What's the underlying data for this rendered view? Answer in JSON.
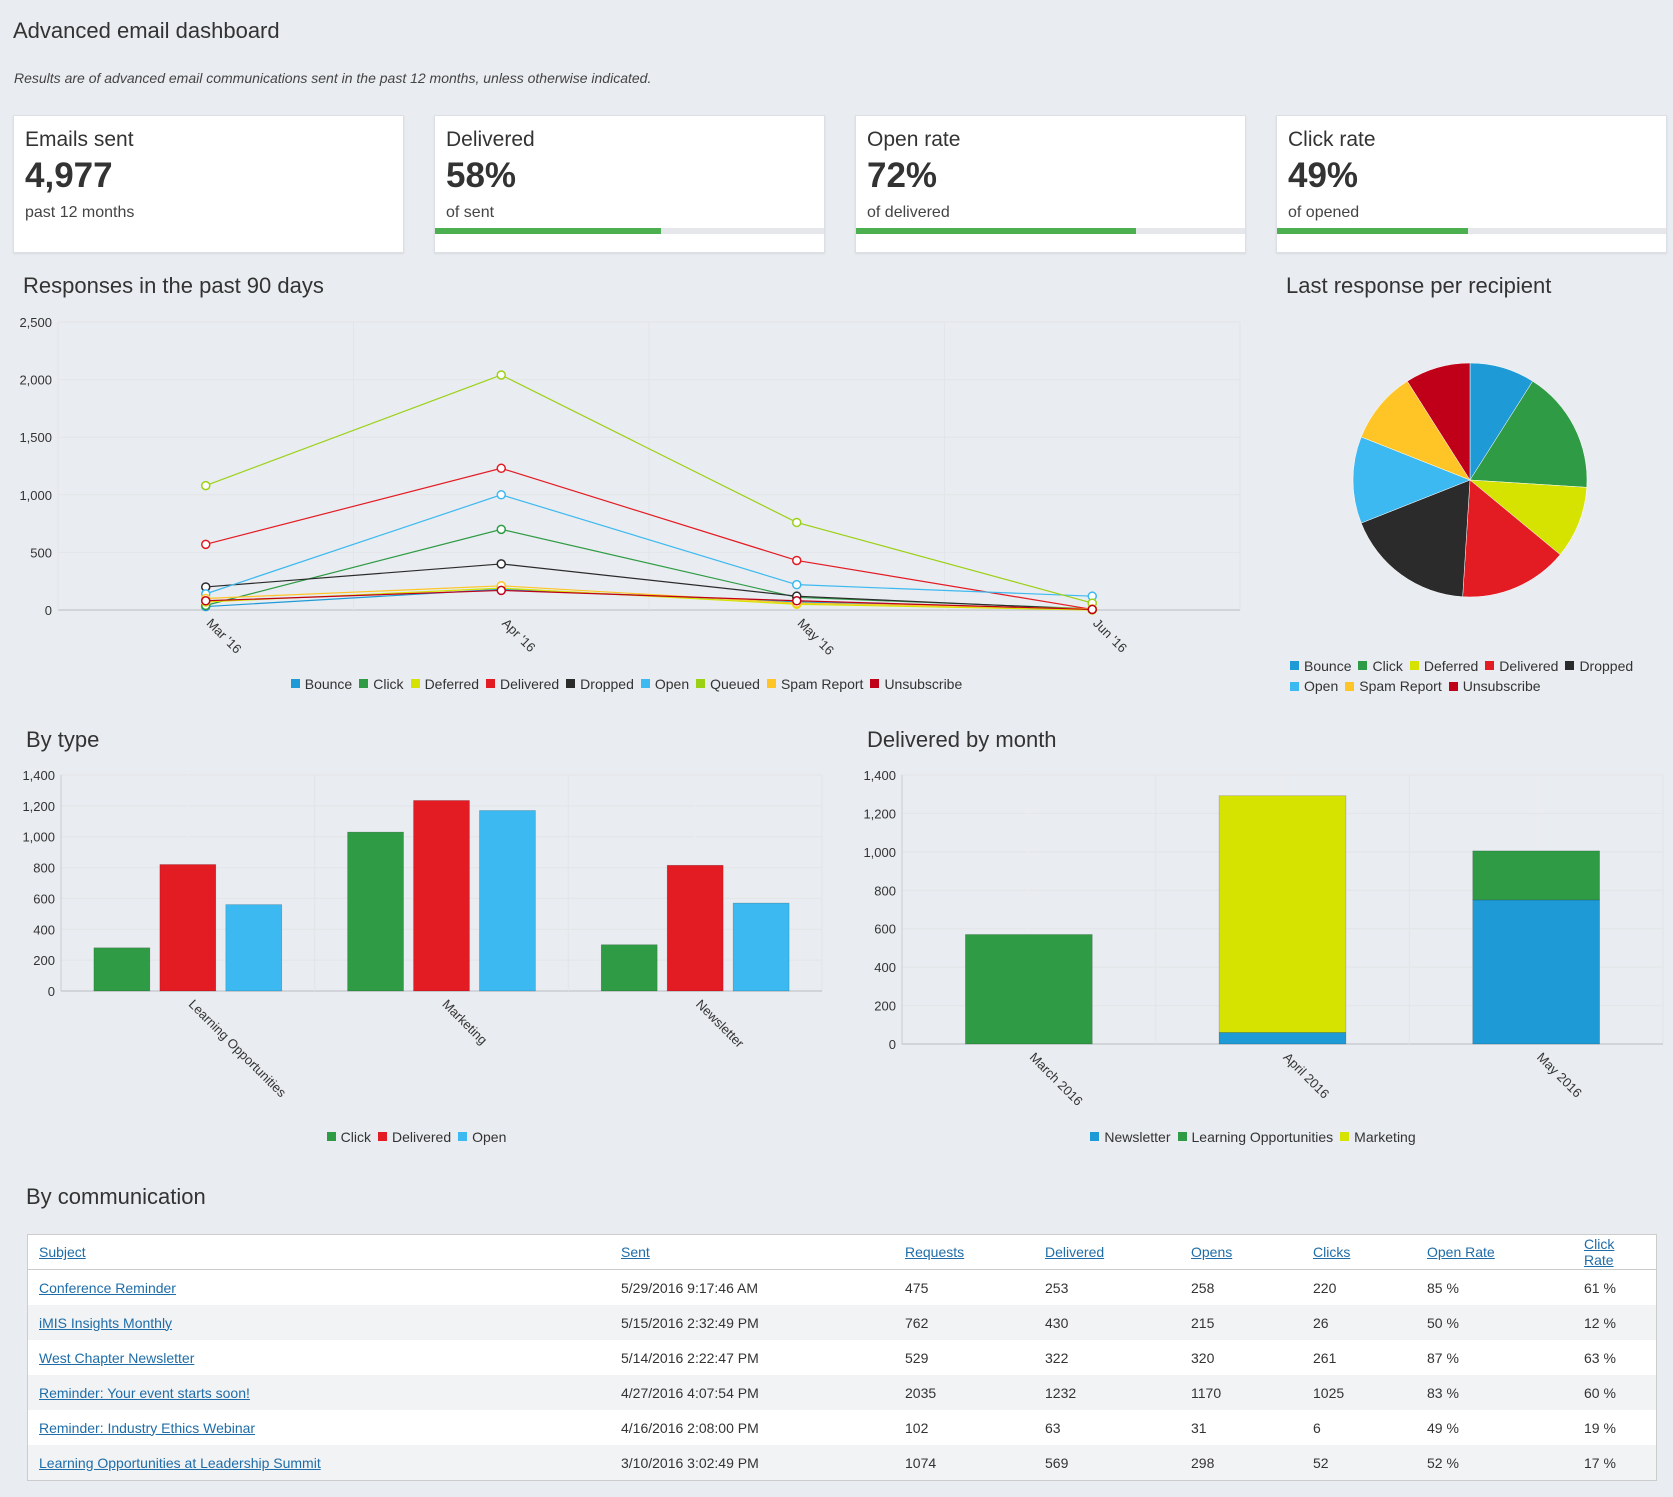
{
  "title": "Advanced email dashboard",
  "subtitle": "Results are of advanced email communications sent in the past 12 months, unless otherwise indicated.",
  "kpis": [
    {
      "label": "Emails sent",
      "value": "4,977",
      "sub": "past 12 months",
      "progress": null
    },
    {
      "label": "Delivered",
      "value": "58%",
      "sub": "of sent",
      "progress": 0.58
    },
    {
      "label": "Open rate",
      "value": "72%",
      "sub": "of delivered",
      "progress": 0.72
    },
    {
      "label": "Click rate",
      "value": "49%",
      "sub": "of opened",
      "progress": 0.49
    }
  ],
  "colors": {
    "accent": "#4caf50",
    "Bounce": "#1e9ad6",
    "Click": "#2f9b45",
    "Deferred": "#d6e300",
    "Delivered": "#e31b23",
    "Dropped": "#2b2b2b",
    "Open": "#3cb9f0",
    "Queued": "#9bd115",
    "Spam Report": "#ffc526",
    "Unsubscribe": "#c00018",
    "Newsletter": "#1e9ad6",
    "Learning Opportunities": "#2f9b45",
    "Marketing": "#d6e300"
  },
  "sections": {
    "responses": "Responses in the past 90 days",
    "pie": "Last response per recipient",
    "bytype": "By type",
    "bymonth": "Delivered by month",
    "bycomm": "By communication"
  },
  "chart_data": [
    {
      "id": "responses",
      "type": "line",
      "title": "Responses in the past 90 days",
      "categories": [
        "Mar '16",
        "Apr '16",
        "May '16",
        "Jun '16"
      ],
      "ylim": [
        0,
        2500
      ],
      "yticks": [
        0,
        500,
        1000,
        1500,
        2000,
        2500
      ],
      "yticklabels": [
        "0",
        "500",
        "1,000",
        "1,500",
        "2,000",
        "2,500"
      ],
      "grid": true,
      "legend": "bottom",
      "series": [
        {
          "name": "Bounce",
          "values": [
            30,
            180,
            70,
            5
          ]
        },
        {
          "name": "Click",
          "values": [
            40,
            700,
            110,
            10
          ]
        },
        {
          "name": "Deferred",
          "values": [
            70,
            190,
            50,
            0
          ]
        },
        {
          "name": "Delivered",
          "values": [
            570,
            1230,
            430,
            5
          ]
        },
        {
          "name": "Dropped",
          "values": [
            200,
            400,
            120,
            5
          ]
        },
        {
          "name": "Open",
          "values": [
            140,
            1000,
            220,
            120
          ]
        },
        {
          "name": "Queued",
          "values": [
            1080,
            2040,
            760,
            60
          ]
        },
        {
          "name": "Spam Report",
          "values": [
            100,
            210,
            60,
            10
          ]
        },
        {
          "name": "Unsubscribe",
          "values": [
            80,
            170,
            80,
            5
          ]
        }
      ]
    },
    {
      "id": "pie",
      "type": "pie",
      "title": "Last response per recipient",
      "legend": "bottom",
      "slices": [
        {
          "name": "Bounce",
          "value": 9
        },
        {
          "name": "Click",
          "value": 17
        },
        {
          "name": "Deferred",
          "value": 10
        },
        {
          "name": "Delivered",
          "value": 15
        },
        {
          "name": "Dropped",
          "value": 18
        },
        {
          "name": "Open",
          "value": 12
        },
        {
          "name": "Spam Report",
          "value": 10
        },
        {
          "name": "Unsubscribe",
          "value": 9
        }
      ]
    },
    {
      "id": "bytype",
      "type": "bar",
      "title": "By type",
      "categories": [
        "Learning Opportunities",
        "Marketing",
        "Newsletter"
      ],
      "ylim": [
        0,
        1400
      ],
      "yticks": [
        0,
        200,
        400,
        600,
        800,
        1000,
        1200,
        1400
      ],
      "yticklabels": [
        "0",
        "200",
        "400",
        "600",
        "800",
        "1,000",
        "1,200",
        "1,400"
      ],
      "grid": true,
      "legend": "bottom",
      "series": [
        {
          "name": "Click",
          "values": [
            280,
            1030,
            300
          ]
        },
        {
          "name": "Delivered",
          "values": [
            820,
            1235,
            815
          ]
        },
        {
          "name": "Open",
          "values": [
            560,
            1170,
            570
          ]
        }
      ]
    },
    {
      "id": "bymonth",
      "type": "bar",
      "stacked": true,
      "title": "Delivered by month",
      "categories": [
        "March 2016",
        "April 2016",
        "May 2016"
      ],
      "ylim": [
        0,
        1400
      ],
      "yticks": [
        0,
        200,
        400,
        600,
        800,
        1000,
        1200,
        1400
      ],
      "yticklabels": [
        "0",
        "200",
        "400",
        "600",
        "800",
        "1,000",
        "1,200",
        "1,400"
      ],
      "grid": true,
      "legend": "bottom",
      "series": [
        {
          "name": "Newsletter",
          "values": [
            0,
            60,
            750
          ]
        },
        {
          "name": "Learning Opportunities",
          "values": [
            570,
            0,
            255
          ]
        },
        {
          "name": "Marketing",
          "values": [
            0,
            1232,
            0
          ]
        }
      ]
    }
  ],
  "table": {
    "headers": [
      "Subject",
      "Sent",
      "Requests",
      "Delivered",
      "Opens",
      "Clicks",
      "Open Rate",
      "Click Rate"
    ],
    "rows": [
      [
        "Conference Reminder",
        "5/29/2016 9:17:46 AM",
        "475",
        "253",
        "258",
        "220",
        "85 %",
        "61 %"
      ],
      [
        "iMIS Insights Monthly",
        "5/15/2016 2:32:49 PM",
        "762",
        "430",
        "215",
        "26",
        "50 %",
        "12 %"
      ],
      [
        "West Chapter Newsletter",
        "5/14/2016 2:22:47 PM",
        "529",
        "322",
        "320",
        "261",
        "87 %",
        "63 %"
      ],
      [
        "Reminder: Your event starts soon!",
        "4/27/2016 4:07:54 PM",
        "2035",
        "1232",
        "1170",
        "1025",
        "83 %",
        "60 %"
      ],
      [
        "Reminder: Industry Ethics Webinar",
        "4/16/2016 2:08:00 PM",
        "102",
        "63",
        "31",
        "6",
        "49 %",
        "19 %"
      ],
      [
        "Learning Opportunities at Leadership Summit",
        "3/10/2016 3:02:49 PM",
        "1074",
        "569",
        "298",
        "52",
        "52 %",
        "17 %"
      ]
    ]
  }
}
